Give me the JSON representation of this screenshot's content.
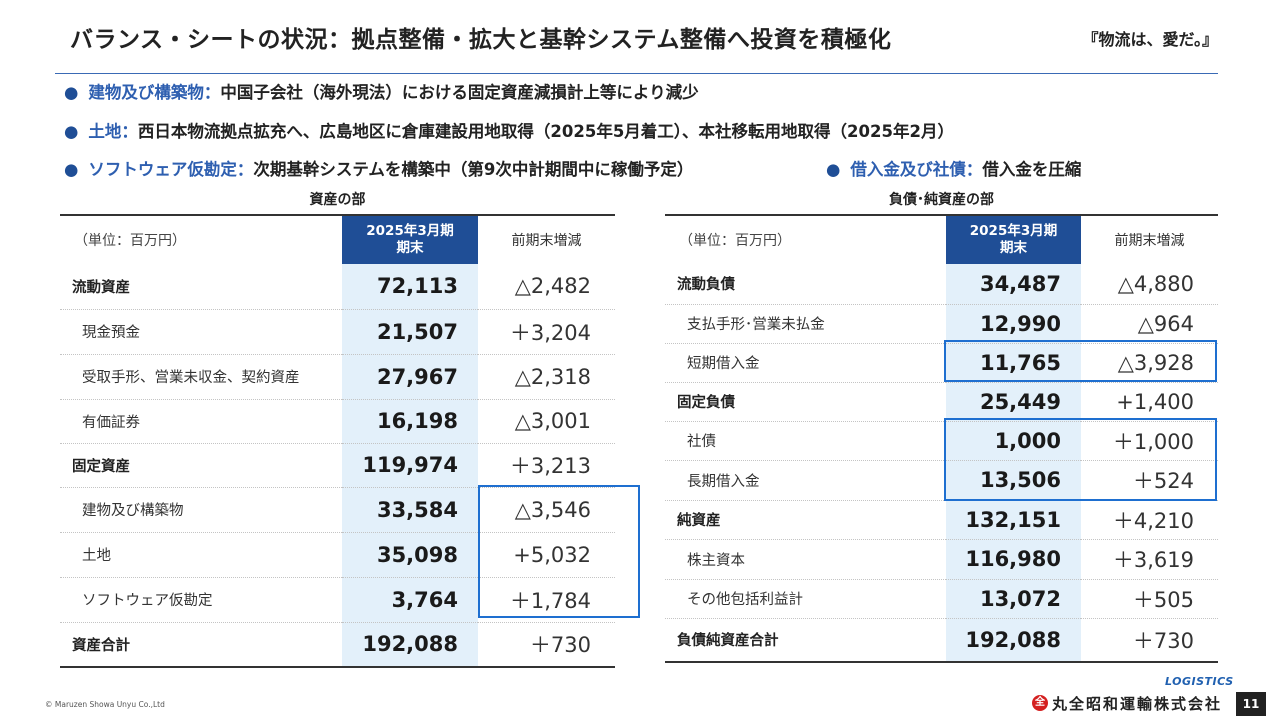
{
  "title": "バランス・シートの状況：拠点整備・拡大と基幹システム整備へ投資を積極化",
  "tagline": "『物流は、愛だ。』",
  "bullets": [
    {
      "key": "建物及び構築物：",
      "text": "中国子会社（海外現法）における固定資産減損計上等により減少"
    },
    {
      "key": "土地：",
      "text": "西日本物流拠点拡充へ、広島地区に倉庫建設用地取得（2025年5月着工）、本社移転用地取得（2025年2月）"
    },
    {
      "key": "ソフトウェア仮勘定：",
      "text": "次期基幹システムを構築中（第9次中計期間中に稼働予定）"
    },
    {
      "key": "借入金及び社債：",
      "text": "借入金を圧縮"
    }
  ],
  "assets": {
    "section_title": "資産の部",
    "unit": "（単位：百万円）",
    "col_current_line1": "2025年3月期",
    "col_current_line2": "期末",
    "col_change": "前期末増減",
    "rows": [
      {
        "label": "流動資産",
        "value": "72,113",
        "change": "△2,482"
      },
      {
        "label": "現金預金",
        "value": "21,507",
        "change": "＋3,204"
      },
      {
        "label": "受取手形、営業未収金、契約資産",
        "value": "27,967",
        "change": "△2,318"
      },
      {
        "label": "有価証券",
        "value": "16,198",
        "change": "△3,001"
      },
      {
        "label": "固定資産",
        "value": "119,974",
        "change": "＋3,213"
      },
      {
        "label": "建物及び構築物",
        "value": "33,584",
        "change": "△3,546"
      },
      {
        "label": "土地",
        "value": "35,098",
        "change": "+5,032"
      },
      {
        "label": "ソフトウェア仮勘定",
        "value": "3,764",
        "change": "＋1,784"
      },
      {
        "label": "資産合計",
        "value": "192,088",
        "change": "＋730"
      }
    ]
  },
  "liabilities": {
    "section_title": "負債･純資産の部",
    "unit": "（単位：百万円）",
    "col_current_line1": "2025年3月期",
    "col_current_line2": "期末",
    "col_change": "前期末増減",
    "rows": [
      {
        "label": "流動負債",
        "value": "34,487",
        "change": "△4,880"
      },
      {
        "label": "支払手形･営業未払金",
        "value": "12,990",
        "change": "△964"
      },
      {
        "label": "短期借入金",
        "value": "11,765",
        "change": "△3,928"
      },
      {
        "label": "固定負債",
        "value": "25,449",
        "change": "+1,400"
      },
      {
        "label": "社債",
        "value": "1,000",
        "change": "＋1,000"
      },
      {
        "label": "長期借入金",
        "value": "13,506",
        "change": "＋524"
      },
      {
        "label": "純資産",
        "value": "132,151",
        "change": "＋4,210"
      },
      {
        "label": "株主資本",
        "value": "116,980",
        "change": "＋3,619"
      },
      {
        "label": "その他包括利益計",
        "value": "13,072",
        "change": "＋505"
      },
      {
        "label": "負債純資産合計",
        "value": "192,088",
        "change": "＋730"
      }
    ]
  },
  "footer": {
    "copyright": "© Maruzen Showa Unyu Co.,Ltd",
    "logo_text": "LOGISTICS",
    "company": "丸全昭和運輸株式会社",
    "page": "11"
  },
  "colors": {
    "accent": "#1f4e96",
    "highlight": "#1e6fd0",
    "value_bg": "#e3f0fa"
  }
}
